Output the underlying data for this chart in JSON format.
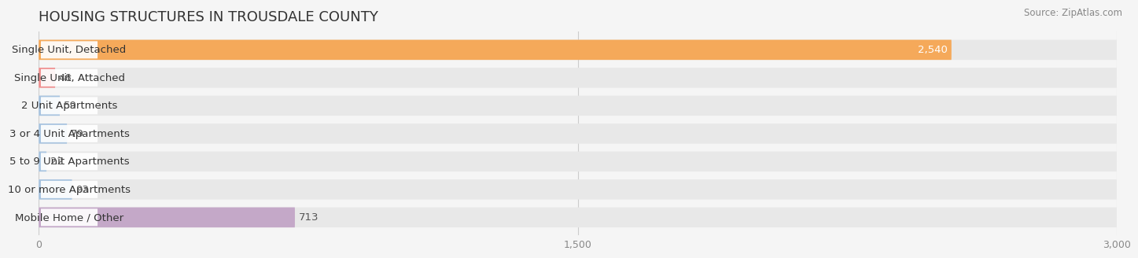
{
  "title": "HOUSING STRUCTURES IN TROUSDALE COUNTY",
  "source": "Source: ZipAtlas.com",
  "categories": [
    "Single Unit, Detached",
    "Single Unit, Attached",
    "2 Unit Apartments",
    "3 or 4 Unit Apartments",
    "5 to 9 Unit Apartments",
    "10 or more Apartments",
    "Mobile Home / Other"
  ],
  "values": [
    2540,
    46,
    59,
    79,
    22,
    93,
    713
  ],
  "bar_colors": [
    "#F5A95A",
    "#F09090",
    "#A8C4E0",
    "#A8C4E0",
    "#A8C4E0",
    "#A8C4E0",
    "#C4A8C8"
  ],
  "value_colors": [
    "#ffffff",
    "#555555",
    "#555555",
    "#555555",
    "#555555",
    "#555555",
    "#555555"
  ],
  "xlim": [
    0,
    3000
  ],
  "xticks": [
    0,
    1500,
    3000
  ],
  "xtick_labels": [
    "0",
    "1,500",
    "3,000"
  ],
  "background_color": "#f5f5f5",
  "bar_bg_color": "#e8e8e8",
  "label_bg_color": "#ffffff",
  "label_fontsize": 9.5,
  "title_fontsize": 13,
  "value_fontsize": 9.5,
  "source_fontsize": 8.5
}
